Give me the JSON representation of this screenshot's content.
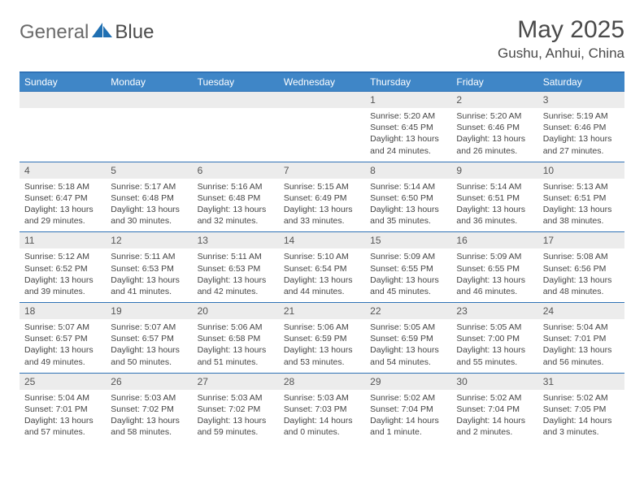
{
  "brand": {
    "word1": "General",
    "word2": "Blue"
  },
  "title": "May 2025",
  "location": "Gushu, Anhui, China",
  "colors": {
    "header_bar": "#3f86c7",
    "header_border": "#2f72b6",
    "daynum_bg": "#ececec",
    "text": "#444444",
    "brand_blue": "#1f6fb2"
  },
  "weekdays": [
    "Sunday",
    "Monday",
    "Tuesday",
    "Wednesday",
    "Thursday",
    "Friday",
    "Saturday"
  ],
  "weeks": [
    [
      null,
      null,
      null,
      null,
      {
        "n": "1",
        "sr": "Sunrise: 5:20 AM",
        "ss": "Sunset: 6:45 PM",
        "dl": "Daylight: 13 hours and 24 minutes."
      },
      {
        "n": "2",
        "sr": "Sunrise: 5:20 AM",
        "ss": "Sunset: 6:46 PM",
        "dl": "Daylight: 13 hours and 26 minutes."
      },
      {
        "n": "3",
        "sr": "Sunrise: 5:19 AM",
        "ss": "Sunset: 6:46 PM",
        "dl": "Daylight: 13 hours and 27 minutes."
      }
    ],
    [
      {
        "n": "4",
        "sr": "Sunrise: 5:18 AM",
        "ss": "Sunset: 6:47 PM",
        "dl": "Daylight: 13 hours and 29 minutes."
      },
      {
        "n": "5",
        "sr": "Sunrise: 5:17 AM",
        "ss": "Sunset: 6:48 PM",
        "dl": "Daylight: 13 hours and 30 minutes."
      },
      {
        "n": "6",
        "sr": "Sunrise: 5:16 AM",
        "ss": "Sunset: 6:48 PM",
        "dl": "Daylight: 13 hours and 32 minutes."
      },
      {
        "n": "7",
        "sr": "Sunrise: 5:15 AM",
        "ss": "Sunset: 6:49 PM",
        "dl": "Daylight: 13 hours and 33 minutes."
      },
      {
        "n": "8",
        "sr": "Sunrise: 5:14 AM",
        "ss": "Sunset: 6:50 PM",
        "dl": "Daylight: 13 hours and 35 minutes."
      },
      {
        "n": "9",
        "sr": "Sunrise: 5:14 AM",
        "ss": "Sunset: 6:51 PM",
        "dl": "Daylight: 13 hours and 36 minutes."
      },
      {
        "n": "10",
        "sr": "Sunrise: 5:13 AM",
        "ss": "Sunset: 6:51 PM",
        "dl": "Daylight: 13 hours and 38 minutes."
      }
    ],
    [
      {
        "n": "11",
        "sr": "Sunrise: 5:12 AM",
        "ss": "Sunset: 6:52 PM",
        "dl": "Daylight: 13 hours and 39 minutes."
      },
      {
        "n": "12",
        "sr": "Sunrise: 5:11 AM",
        "ss": "Sunset: 6:53 PM",
        "dl": "Daylight: 13 hours and 41 minutes."
      },
      {
        "n": "13",
        "sr": "Sunrise: 5:11 AM",
        "ss": "Sunset: 6:53 PM",
        "dl": "Daylight: 13 hours and 42 minutes."
      },
      {
        "n": "14",
        "sr": "Sunrise: 5:10 AM",
        "ss": "Sunset: 6:54 PM",
        "dl": "Daylight: 13 hours and 44 minutes."
      },
      {
        "n": "15",
        "sr": "Sunrise: 5:09 AM",
        "ss": "Sunset: 6:55 PM",
        "dl": "Daylight: 13 hours and 45 minutes."
      },
      {
        "n": "16",
        "sr": "Sunrise: 5:09 AM",
        "ss": "Sunset: 6:55 PM",
        "dl": "Daylight: 13 hours and 46 minutes."
      },
      {
        "n": "17",
        "sr": "Sunrise: 5:08 AM",
        "ss": "Sunset: 6:56 PM",
        "dl": "Daylight: 13 hours and 48 minutes."
      }
    ],
    [
      {
        "n": "18",
        "sr": "Sunrise: 5:07 AM",
        "ss": "Sunset: 6:57 PM",
        "dl": "Daylight: 13 hours and 49 minutes."
      },
      {
        "n": "19",
        "sr": "Sunrise: 5:07 AM",
        "ss": "Sunset: 6:57 PM",
        "dl": "Daylight: 13 hours and 50 minutes."
      },
      {
        "n": "20",
        "sr": "Sunrise: 5:06 AM",
        "ss": "Sunset: 6:58 PM",
        "dl": "Daylight: 13 hours and 51 minutes."
      },
      {
        "n": "21",
        "sr": "Sunrise: 5:06 AM",
        "ss": "Sunset: 6:59 PM",
        "dl": "Daylight: 13 hours and 53 minutes."
      },
      {
        "n": "22",
        "sr": "Sunrise: 5:05 AM",
        "ss": "Sunset: 6:59 PM",
        "dl": "Daylight: 13 hours and 54 minutes."
      },
      {
        "n": "23",
        "sr": "Sunrise: 5:05 AM",
        "ss": "Sunset: 7:00 PM",
        "dl": "Daylight: 13 hours and 55 minutes."
      },
      {
        "n": "24",
        "sr": "Sunrise: 5:04 AM",
        "ss": "Sunset: 7:01 PM",
        "dl": "Daylight: 13 hours and 56 minutes."
      }
    ],
    [
      {
        "n": "25",
        "sr": "Sunrise: 5:04 AM",
        "ss": "Sunset: 7:01 PM",
        "dl": "Daylight: 13 hours and 57 minutes."
      },
      {
        "n": "26",
        "sr": "Sunrise: 5:03 AM",
        "ss": "Sunset: 7:02 PM",
        "dl": "Daylight: 13 hours and 58 minutes."
      },
      {
        "n": "27",
        "sr": "Sunrise: 5:03 AM",
        "ss": "Sunset: 7:02 PM",
        "dl": "Daylight: 13 hours and 59 minutes."
      },
      {
        "n": "28",
        "sr": "Sunrise: 5:03 AM",
        "ss": "Sunset: 7:03 PM",
        "dl": "Daylight: 14 hours and 0 minutes."
      },
      {
        "n": "29",
        "sr": "Sunrise: 5:02 AM",
        "ss": "Sunset: 7:04 PM",
        "dl": "Daylight: 14 hours and 1 minute."
      },
      {
        "n": "30",
        "sr": "Sunrise: 5:02 AM",
        "ss": "Sunset: 7:04 PM",
        "dl": "Daylight: 14 hours and 2 minutes."
      },
      {
        "n": "31",
        "sr": "Sunrise: 5:02 AM",
        "ss": "Sunset: 7:05 PM",
        "dl": "Daylight: 14 hours and 3 minutes."
      }
    ]
  ]
}
